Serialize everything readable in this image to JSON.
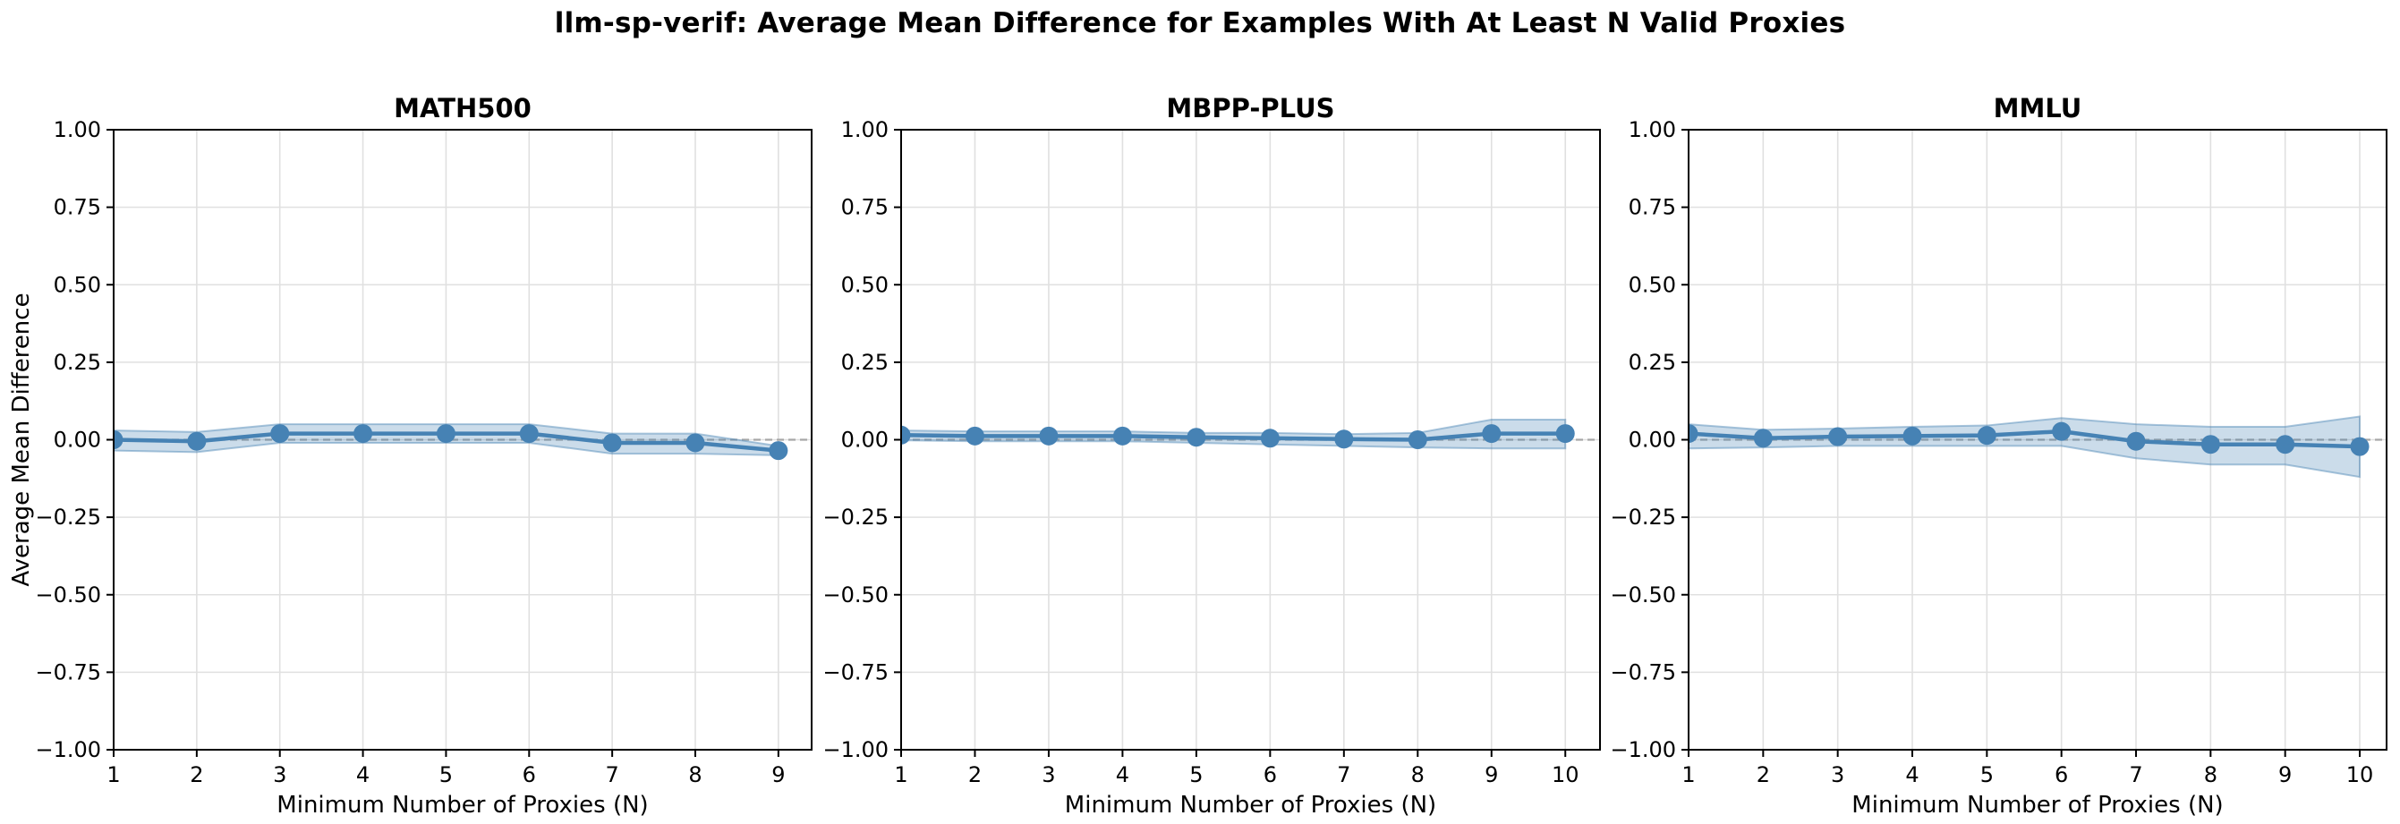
{
  "figure": {
    "title": "llm-sp-verif: Average Mean Difference for Examples With At Least N Valid Proxies"
  },
  "style": {
    "line_color": "#4682b4",
    "band_color": "rgba(70, 130, 180, 0.28)",
    "band_edge_color": "rgba(70, 130, 180, 0.45)",
    "zero_line_color": "#a6a6a6",
    "grid_color": "#e0e0e0",
    "spine_color": "#000000",
    "text_color": "#000000"
  },
  "chart_data": [
    {
      "type": "line",
      "title": "MATH500",
      "xlabel": "Minimum Number of Proxies (N)",
      "ylabel": "Average Mean Difference",
      "legend": null,
      "grid": true,
      "x": [
        1,
        2,
        3,
        4,
        5,
        6,
        7,
        8,
        9
      ],
      "y": [
        0.0,
        -0.005,
        0.02,
        0.02,
        0.02,
        0.02,
        -0.01,
        -0.01,
        -0.035
      ],
      "band_upper": [
        0.03,
        0.025,
        0.05,
        0.05,
        0.05,
        0.05,
        0.02,
        0.02,
        -0.02
      ],
      "band_lower": [
        -0.035,
        -0.04,
        -0.01,
        -0.01,
        -0.01,
        -0.01,
        -0.045,
        -0.045,
        -0.05
      ],
      "xticks": [
        1,
        2,
        3,
        4,
        5,
        6,
        7,
        8,
        9
      ],
      "yticks": [
        -1.0,
        -0.75,
        -0.5,
        -0.25,
        0.0,
        0.25,
        0.5,
        0.75,
        1.0
      ],
      "xlim": [
        1,
        9.4
      ],
      "ylim": [
        -1.0,
        1.0
      ],
      "zero_reference_line": 0.0
    },
    {
      "type": "line",
      "title": "MBPP-PLUS",
      "xlabel": "Minimum Number of Proxies (N)",
      "ylabel": "",
      "legend": null,
      "grid": true,
      "x": [
        1,
        2,
        3,
        4,
        5,
        6,
        7,
        8,
        9,
        10
      ],
      "y": [
        0.015,
        0.012,
        0.012,
        0.012,
        0.008,
        0.005,
        0.002,
        0.0,
        0.02,
        0.02
      ],
      "band_upper": [
        0.03,
        0.027,
        0.027,
        0.027,
        0.022,
        0.022,
        0.018,
        0.022,
        0.065,
        0.065
      ],
      "band_lower": [
        -0.002,
        -0.005,
        -0.005,
        -0.005,
        -0.01,
        -0.015,
        -0.02,
        -0.025,
        -0.028,
        -0.028
      ],
      "xticks": [
        1,
        2,
        3,
        4,
        5,
        6,
        7,
        8,
        9,
        10
      ],
      "yticks": [
        -1.0,
        -0.75,
        -0.5,
        -0.25,
        0.0,
        0.25,
        0.5,
        0.75,
        1.0
      ],
      "xlim": [
        1,
        10.47
      ],
      "ylim": [
        -1.0,
        1.0
      ],
      "zero_reference_line": 0.0
    },
    {
      "type": "line",
      "title": "MMLU",
      "xlabel": "Minimum Number of Proxies (N)",
      "ylabel": "",
      "legend": null,
      "grid": true,
      "x": [
        1,
        2,
        3,
        4,
        5,
        6,
        7,
        8,
        9,
        10
      ],
      "y": [
        0.02,
        0.005,
        0.01,
        0.012,
        0.014,
        0.027,
        -0.005,
        -0.015,
        -0.015,
        -0.022
      ],
      "band_upper": [
        0.05,
        0.032,
        0.036,
        0.042,
        0.046,
        0.07,
        0.05,
        0.042,
        0.042,
        0.075
      ],
      "band_lower": [
        -0.028,
        -0.025,
        -0.02,
        -0.02,
        -0.02,
        -0.02,
        -0.06,
        -0.08,
        -0.08,
        -0.12
      ],
      "xticks": [
        1,
        2,
        3,
        4,
        5,
        6,
        7,
        8,
        9,
        10
      ],
      "yticks": [
        -1.0,
        -0.75,
        -0.5,
        -0.25,
        0.0,
        0.25,
        0.5,
        0.75,
        1.0
      ],
      "xlim": [
        1,
        10.36
      ],
      "ylim": [
        -1.0,
        1.0
      ],
      "zero_reference_line": 0.0
    }
  ]
}
